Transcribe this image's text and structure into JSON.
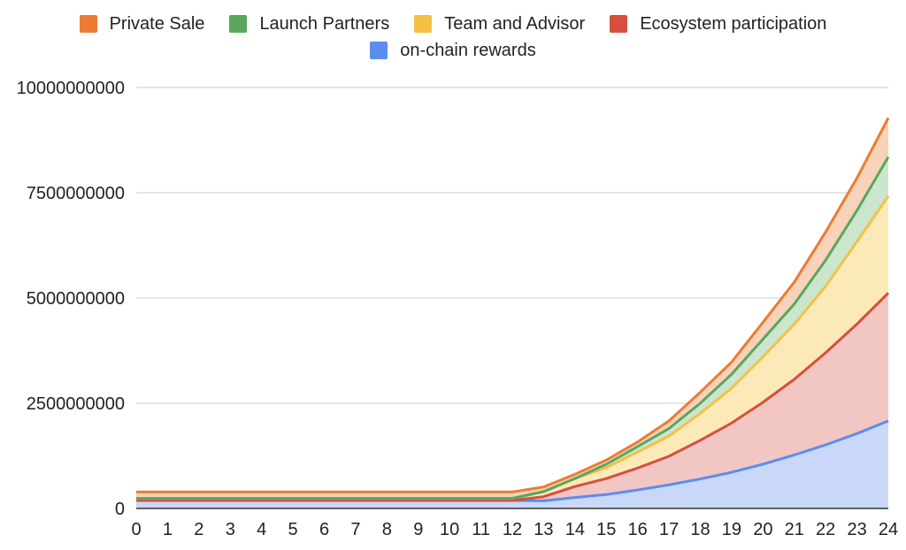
{
  "chart_data": {
    "type": "area",
    "stacked": true,
    "title": "",
    "xlabel": "",
    "ylabel": "",
    "x": [
      0,
      1,
      2,
      3,
      4,
      5,
      6,
      7,
      8,
      9,
      10,
      11,
      12,
      13,
      14,
      15,
      16,
      17,
      18,
      19,
      20,
      21,
      22,
      23,
      24
    ],
    "ylim": [
      0,
      10000000000
    ],
    "y_ticks": [
      "0",
      "2500000000",
      "5000000000",
      "7500000000",
      "10000000000"
    ],
    "grid": true,
    "legend_position": "top",
    "series": [
      {
        "name": "on-chain rewards",
        "color": "#5b8def",
        "fill": "#c9d8f8",
        "values": [
          190000000,
          190000000,
          190000000,
          190000000,
          190000000,
          190000000,
          190000000,
          190000000,
          190000000,
          190000000,
          190000000,
          190000000,
          190000000,
          180000000,
          260000000,
          330000000,
          440000000,
          560000000,
          700000000,
          860000000,
          1050000000,
          1270000000,
          1510000000,
          1780000000,
          2080000000
        ]
      },
      {
        "name": "Ecosystem participation",
        "color": "#d64f3f",
        "fill": "#f2c6c2",
        "values": [
          0,
          0,
          0,
          0,
          0,
          0,
          0,
          0,
          0,
          0,
          0,
          0,
          0,
          100000000,
          260000000,
          380000000,
          520000000,
          680000000,
          920000000,
          1170000000,
          1470000000,
          1800000000,
          2190000000,
          2600000000,
          3040000000
        ]
      },
      {
        "name": "Team and Advisor",
        "color": "#f4c146",
        "fill": "#fbeab8",
        "values": [
          50000000,
          50000000,
          50000000,
          50000000,
          50000000,
          50000000,
          50000000,
          50000000,
          50000000,
          50000000,
          50000000,
          50000000,
          50000000,
          120000000,
          190000000,
          260000000,
          380000000,
          480000000,
          640000000,
          830000000,
          1080000000,
          1310000000,
          1580000000,
          1960000000,
          2300000000
        ]
      },
      {
        "name": "Launch Partners",
        "color": "#5aa65f",
        "fill": "#cce5cd",
        "values": [
          0,
          0,
          0,
          0,
          0,
          0,
          0,
          0,
          0,
          0,
          0,
          0,
          0,
          0,
          0,
          80000000,
          130000000,
          180000000,
          240000000,
          330000000,
          420000000,
          480000000,
          620000000,
          740000000,
          930000000
        ]
      },
      {
        "name": "Private Sale",
        "color": "#ed7b33",
        "fill": "#f8d2b9",
        "values": [
          150000000,
          150000000,
          150000000,
          150000000,
          150000000,
          150000000,
          150000000,
          150000000,
          150000000,
          150000000,
          150000000,
          150000000,
          150000000,
          110000000,
          100000000,
          100000000,
          110000000,
          180000000,
          260000000,
          290000000,
          400000000,
          520000000,
          670000000,
          770000000,
          930000000
        ]
      }
    ],
    "legend_order": [
      "Private Sale",
      "Launch Partners",
      "Team and Advisor",
      "Ecosystem participation",
      "on-chain rewards"
    ]
  }
}
